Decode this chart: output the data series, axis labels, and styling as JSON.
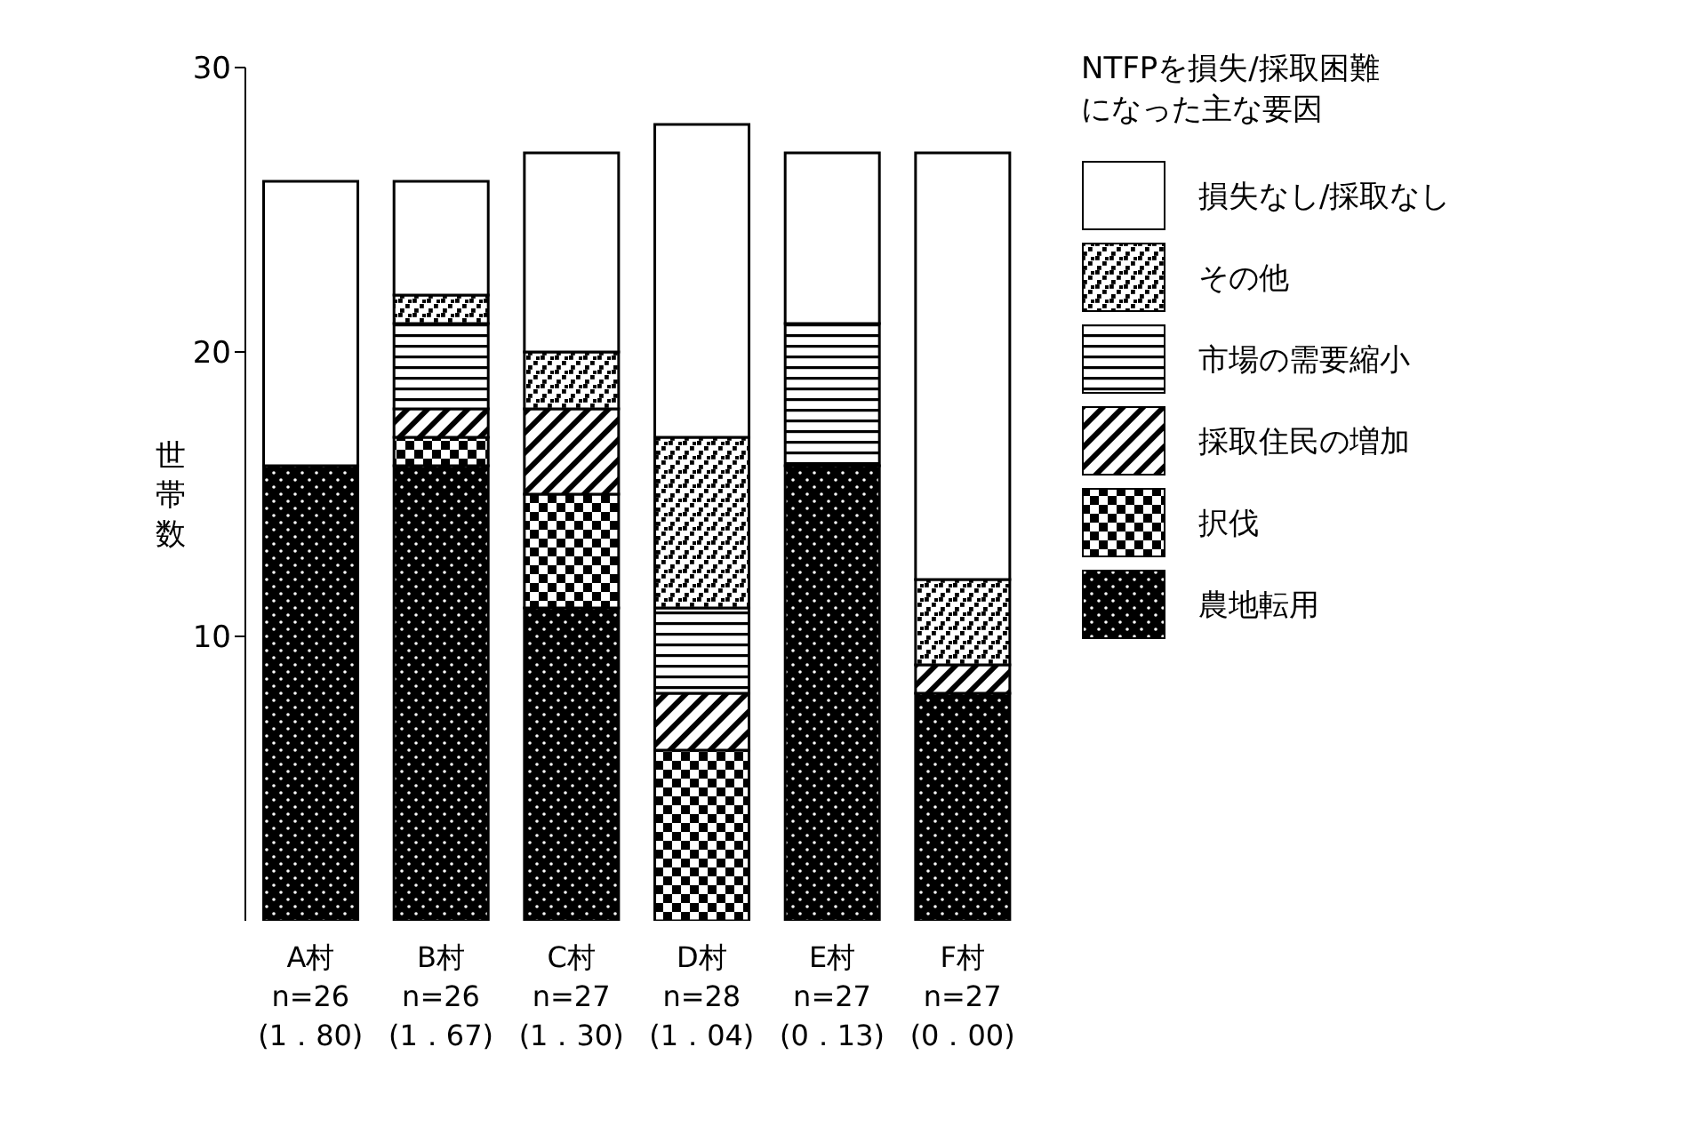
{
  "chart_data": {
    "type": "bar",
    "stacked": true,
    "ylabel": "世帯数",
    "legend_title": "NTFPを損失/採取困難になった主な要因",
    "legend": "right",
    "categories": [
      "A村\nn=26\n(1．80)",
      "B村\nn=26\n(1．67)",
      "C村\nn=27\n(1．30)",
      "D村\nn=28\n(1．04)",
      "E村\nn=27\n(0．13)",
      "F村\nn=27\n(0．00)"
    ],
    "series": [
      {
        "name": "農地転用",
        "color": "#000000",
        "values": [
          16,
          16,
          11,
          0,
          16,
          8
        ]
      },
      {
        "name": "択伐",
        "color": "#000000",
        "values": [
          0,
          1,
          4,
          6,
          0,
          0
        ]
      },
      {
        "name": "採取住民の増加",
        "color": "#000000",
        "values": [
          0,
          1,
          3,
          2,
          0,
          1
        ]
      },
      {
        "name": "市場の需要縮小",
        "color": "#000000",
        "values": [
          0,
          3,
          0,
          3,
          5,
          0
        ]
      },
      {
        "name": "その他",
        "color": "#000000",
        "values": [
          0,
          1,
          2,
          6,
          0,
          3
        ]
      },
      {
        "name": "損失なし/採取なし",
        "color": "#ffffff",
        "values": [
          10,
          4,
          7,
          11,
          6,
          15
        ]
      }
    ],
    "ylim": [
      0,
      30
    ],
    "yticks": [
      10,
      20,
      30
    ]
  }
}
